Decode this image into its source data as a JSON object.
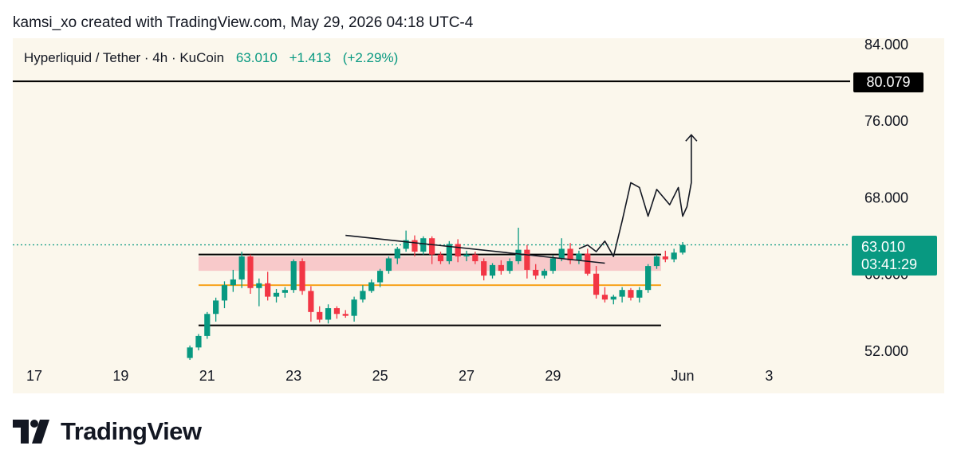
{
  "header": {
    "credit": "kamsi_xo created with TradingView.com, May 29, 2026 04:18 UTC-4"
  },
  "symbol": {
    "name": "Hyperliquid / Tether",
    "interval": "4h",
    "exchange": "KuCoin",
    "price": "63.010",
    "change": "+1.413",
    "change_pct": "(+2.29%)"
  },
  "badges": {
    "level": "80.079",
    "price": "63.010",
    "countdown": "03:41:29"
  },
  "brand": {
    "name": "TradingView"
  },
  "colors": {
    "up": "#089981",
    "down": "#f23645",
    "zone": "#f7c1c4",
    "support_orange": "#f7a21b",
    "panel": "#fbf7ec"
  },
  "chart_data": {
    "type": "candlestick",
    "price_axis": {
      "ticks": [
        "84.000",
        "76.000",
        "68.000",
        "60.000",
        "52.000"
      ],
      "tick_values": [
        84,
        76,
        68,
        60,
        52
      ]
    },
    "time_axis": {
      "ticks": [
        "17",
        "19",
        "21",
        "23",
        "25",
        "27",
        "29",
        "Jun",
        "3"
      ],
      "tick_days": [
        17,
        19,
        21,
        23,
        25,
        27,
        29,
        32,
        34
      ]
    },
    "current_price": 63.01,
    "horizontal_levels": [
      {
        "value": 80.079,
        "color": "#000000"
      },
      {
        "value": 62.0,
        "color": "#000000",
        "from_day": 20.8,
        "to_day": 31.5
      },
      {
        "value": 58.8,
        "color": "#f7a21b",
        "from_day": 20.8,
        "to_day": 31.5
      },
      {
        "value": 54.6,
        "color": "#000000",
        "from_day": 20.8,
        "to_day": 31.5
      }
    ],
    "zone": {
      "low": 60.3,
      "high": 61.8,
      "from_day": 20.8,
      "to_day": 31.5
    },
    "trendline": {
      "from": [
        24.2,
        64.0
      ],
      "to": [
        30.2,
        61.1
      ]
    },
    "projection": [
      [
        29.6,
        62.6
      ],
      [
        29.8,
        63.0
      ],
      [
        30.0,
        62.3
      ],
      [
        30.2,
        63.4
      ],
      [
        30.4,
        61.8
      ],
      [
        30.6,
        65.5
      ],
      [
        30.8,
        69.5
      ],
      [
        31.0,
        69.0
      ],
      [
        31.2,
        66.0
      ],
      [
        31.4,
        68.8
      ],
      [
        31.7,
        67.2
      ],
      [
        31.9,
        69.0
      ],
      [
        32.0,
        66.0
      ],
      [
        32.1,
        67.0
      ],
      [
        32.2,
        69.5
      ],
      [
        32.2,
        74.5
      ]
    ],
    "candles": [
      [
        20.6,
        51.2,
        52.5,
        51.0,
        52.3
      ],
      [
        20.8,
        52.3,
        53.7,
        52.0,
        53.5
      ],
      [
        21.0,
        53.5,
        56.0,
        53.2,
        55.8
      ],
      [
        21.2,
        55.8,
        57.5,
        55.0,
        57.2
      ],
      [
        21.4,
        57.2,
        59.2,
        56.4,
        58.8
      ],
      [
        21.6,
        58.8,
        60.4,
        58.1,
        59.4
      ],
      [
        21.8,
        59.4,
        62.3,
        58.5,
        61.8
      ],
      [
        22.0,
        61.8,
        62.0,
        57.9,
        58.5
      ],
      [
        22.2,
        58.5,
        59.5,
        56.6,
        59.0
      ],
      [
        22.4,
        59.0,
        60.2,
        57.2,
        57.6
      ],
      [
        22.6,
        57.6,
        58.4,
        57.0,
        58.0
      ],
      [
        22.8,
        58.0,
        58.6,
        57.5,
        58.3
      ],
      [
        23.0,
        58.3,
        61.5,
        58.0,
        61.3
      ],
      [
        23.2,
        61.3,
        61.6,
        57.8,
        58.2
      ],
      [
        23.4,
        58.2,
        58.7,
        55.0,
        56.0
      ],
      [
        23.6,
        56.0,
        56.6,
        54.9,
        55.2
      ],
      [
        23.8,
        55.2,
        56.8,
        54.8,
        56.4
      ],
      [
        24.0,
        56.4,
        56.6,
        55.3,
        55.8
      ],
      [
        24.2,
        55.8,
        56.2,
        55.4,
        55.6
      ],
      [
        24.4,
        55.6,
        57.6,
        55.0,
        57.3
      ],
      [
        24.6,
        57.3,
        58.8,
        57.0,
        58.2
      ],
      [
        24.8,
        58.2,
        59.4,
        58.0,
        59.1
      ],
      [
        25.0,
        59.1,
        60.5,
        58.6,
        60.3
      ],
      [
        25.2,
        60.3,
        61.8,
        60.0,
        61.6
      ],
      [
        25.4,
        61.6,
        62.8,
        61.0,
        62.6
      ],
      [
        25.6,
        62.6,
        64.5,
        62.3,
        63.5
      ],
      [
        25.8,
        63.5,
        64.0,
        61.8,
        62.3
      ],
      [
        26.0,
        62.3,
        63.9,
        62.0,
        63.7
      ],
      [
        26.2,
        63.7,
        63.9,
        61.0,
        62.0
      ],
      [
        26.4,
        62.0,
        62.3,
        61.0,
        61.3
      ],
      [
        26.6,
        61.3,
        63.4,
        61.0,
        63.1
      ],
      [
        26.8,
        63.1,
        63.6,
        61.2,
        61.8
      ],
      [
        27.0,
        61.8,
        62.4,
        61.3,
        62.0
      ],
      [
        27.2,
        62.0,
        62.3,
        61.0,
        61.3
      ],
      [
        27.4,
        61.3,
        61.6,
        59.3,
        59.8
      ],
      [
        27.6,
        59.8,
        61.1,
        59.5,
        60.9
      ],
      [
        27.8,
        60.9,
        61.4,
        59.9,
        60.3
      ],
      [
        28.0,
        60.3,
        61.6,
        60.0,
        61.3
      ],
      [
        28.2,
        61.3,
        64.8,
        61.0,
        62.5
      ],
      [
        28.4,
        62.5,
        63.0,
        59.5,
        60.4
      ],
      [
        28.6,
        60.4,
        61.0,
        59.4,
        59.8
      ],
      [
        28.8,
        59.8,
        60.5,
        59.5,
        60.3
      ],
      [
        29.0,
        60.3,
        61.9,
        60.0,
        61.6
      ],
      [
        29.2,
        61.6,
        63.7,
        61.3,
        62.6
      ],
      [
        29.4,
        62.6,
        63.2,
        61.0,
        61.4
      ],
      [
        29.6,
        61.4,
        62.4,
        61.0,
        62.1
      ],
      [
        29.8,
        62.1,
        62.6,
        59.8,
        60.0
      ],
      [
        30.0,
        60.0,
        60.8,
        57.4,
        57.8
      ],
      [
        30.2,
        57.8,
        58.6,
        57.0,
        57.3
      ],
      [
        30.4,
        57.3,
        57.8,
        56.8,
        57.6
      ],
      [
        30.6,
        57.6,
        58.6,
        57.0,
        58.3
      ],
      [
        30.8,
        58.3,
        58.5,
        57.2,
        57.5
      ],
      [
        31.0,
        57.5,
        58.6,
        57.0,
        58.3
      ],
      [
        31.2,
        58.3,
        61.0,
        58.0,
        60.8
      ],
      [
        31.4,
        60.8,
        62.0,
        60.5,
        61.8
      ],
      [
        31.6,
        61.8,
        62.4,
        61.2,
        61.5
      ],
      [
        31.8,
        61.5,
        62.6,
        61.2,
        62.2
      ],
      [
        32.0,
        62.2,
        63.3,
        62.0,
        63.0
      ]
    ]
  }
}
